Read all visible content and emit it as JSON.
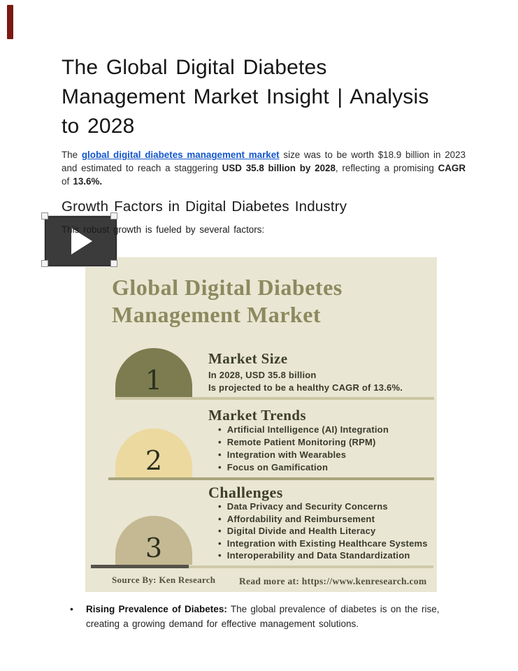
{
  "page": {
    "title": "The Global Digital Diabetes Management Market Insight | Analysis to 2028",
    "intro": {
      "pre": "The ",
      "link": "global digital diabetes management market",
      "mid1": " size was to be worth $18.9 billion in 2023 and estimated to reach a staggering ",
      "bold1": "USD 35.8 billion by 2028",
      "mid2": ", reflecting a promising ",
      "bold2": "CAGR",
      "mid3": " of ",
      "bold3": "13.6%."
    },
    "growth_heading": "Growth Factors in Digital Diabetes Industry",
    "lead_line": "This robust growth is fueled by several factors:",
    "bottom_bullet": {
      "bold": "Rising Prevalence of Diabetes:",
      "text": " The global prevalence of diabetes is on the rise, creating a growing demand for effective management solutions."
    }
  },
  "video": {
    "play_icon": "play-triangle"
  },
  "infographic": {
    "bg_color": "#e9e6d3",
    "title_color": "#8a8a5f",
    "title_line1": "Global Digital Diabetes",
    "title_line2": "Management Market",
    "sections": [
      {
        "number": "1",
        "heading": "Market Size",
        "dome_color": "#7c7c50",
        "line1": "In 2028, USD 35.8 billion",
        "line2": "Is projected to be a healthy CAGR of 13.6%."
      },
      {
        "number": "2",
        "heading": "Market Trends",
        "dome_color": "#ecd9a0",
        "bullets": [
          "Artificial Intelligence (AI) Integration",
          "Remote Patient Monitoring (RPM)",
          "Integration with Wearables",
          "Focus on Gamification"
        ]
      },
      {
        "number": "3",
        "heading": "Challenges",
        "dome_color": "#c4b993",
        "bullets": [
          "Data Privacy and Security Concerns",
          "Affordability and Reimbursement",
          "Digital Divide and Health Literacy",
          "Integration with Existing Healthcare Systems",
          "Interoperability and Data Standardization"
        ]
      }
    ],
    "footer_left": "Source By: Ken Research",
    "footer_right": "Read more at: https://www.kenresearch.com"
  },
  "colors": {
    "link_blue": "#1356cc",
    "flag_red": "#7a1a12",
    "play_button_bg": "#3b3b3b"
  }
}
